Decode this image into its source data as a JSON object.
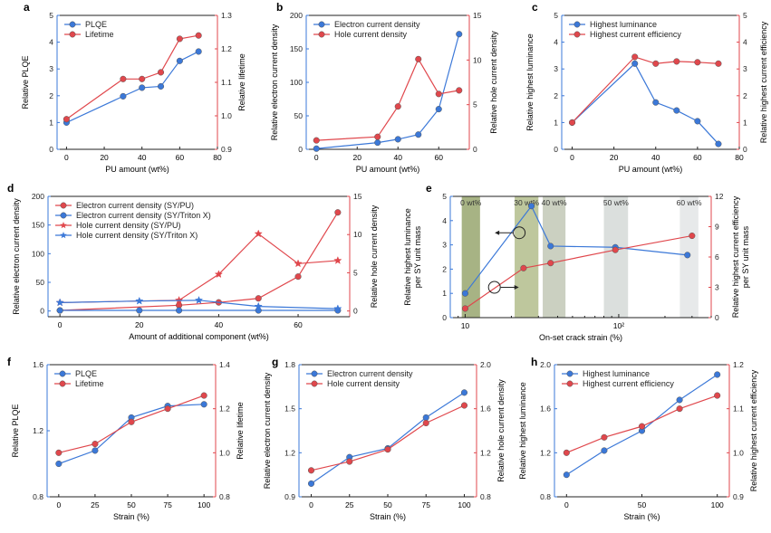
{
  "figure_title": "",
  "colors": {
    "blue": "#3b78d8",
    "red": "#e0474c",
    "axis_red": "#e0474c",
    "axis_blue": "#3b78d8",
    "black": "#222222"
  },
  "chart_data": [
    {
      "panel": "a",
      "type": "line",
      "xlabel": "PU amount (wt%)",
      "xlim": [
        -5,
        80
      ],
      "xticks": [
        0,
        20,
        40,
        60,
        80
      ],
      "ylabel": "Relative PLQE",
      "ylim": [
        0,
        5
      ],
      "yticks": [
        0,
        1,
        2,
        3,
        4,
        5
      ],
      "y2label": "Relative lifetime",
      "y2lim": [
        0.9,
        1.3
      ],
      "y2ticks": [
        "0.9",
        "1.0",
        "1.1",
        "1.2",
        "1.3"
      ],
      "legend_position": "top-left",
      "series": [
        {
          "name": "PLQE",
          "color": "blue",
          "marker": "circle",
          "axis": "left",
          "x": [
            0,
            30,
            40,
            50,
            60,
            70
          ],
          "y": [
            1.0,
            1.98,
            2.3,
            2.35,
            3.3,
            3.65
          ]
        },
        {
          "name": "Lifetime",
          "color": "red",
          "marker": "circle",
          "axis": "right",
          "x": [
            0,
            30,
            40,
            50,
            60,
            70
          ],
          "y": [
            0.99,
            1.11,
            1.11,
            1.13,
            1.23,
            1.24
          ]
        }
      ]
    },
    {
      "panel": "b",
      "type": "line",
      "xlabel": "PU amount (wt%)",
      "xlim": [
        -5,
        75
      ],
      "xticks": [
        0,
        20,
        40,
        60
      ],
      "ylabel": "Relative electron current density",
      "ylim": [
        0,
        200
      ],
      "yticks": [
        0,
        50,
        100,
        150,
        200
      ],
      "y2label": "Relative hole current density",
      "y2lim": [
        0,
        15
      ],
      "y2ticks": [
        "0",
        "5",
        "10",
        "15"
      ],
      "legend_position": "top-left",
      "series": [
        {
          "name": "Electron current density",
          "color": "blue",
          "marker": "circle",
          "axis": "left",
          "x": [
            0,
            30,
            40,
            50,
            60,
            70
          ],
          "y": [
            1,
            10,
            15,
            22,
            60,
            172
          ]
        },
        {
          "name": "Hole current density",
          "color": "red",
          "marker": "circle",
          "axis": "right",
          "x": [
            0,
            30,
            40,
            50,
            60,
            70
          ],
          "y": [
            1.0,
            1.4,
            4.8,
            10.1,
            6.2,
            6.6
          ]
        }
      ]
    },
    {
      "panel": "c",
      "type": "line",
      "xlabel": "PU amount (wt%)",
      "xlim": [
        -5,
        80
      ],
      "xticks": [
        0,
        20,
        40,
        60,
        80
      ],
      "ylabel": "Relative highest luminance",
      "ylim": [
        0,
        5
      ],
      "yticks": [
        0,
        1,
        2,
        3,
        4,
        5
      ],
      "y2label": "Relative highest current efficiency",
      "y2lim": [
        0,
        5
      ],
      "y2ticks": [
        "0",
        "1",
        "2",
        "3",
        "4",
        "5"
      ],
      "legend_position": "top-left",
      "series": [
        {
          "name": "Highest luminance",
          "color": "blue",
          "marker": "circle",
          "axis": "left",
          "x": [
            0,
            30,
            40,
            50,
            60,
            70
          ],
          "y": [
            1.0,
            3.2,
            1.75,
            1.45,
            1.05,
            0.2
          ]
        },
        {
          "name": "Highest current efficiency",
          "color": "red",
          "marker": "circle",
          "axis": "right",
          "x": [
            0,
            30,
            40,
            50,
            60,
            70
          ],
          "y": [
            1.0,
            3.45,
            3.2,
            3.28,
            3.25,
            3.2
          ]
        }
      ]
    },
    {
      "panel": "d",
      "type": "line",
      "xlabel": "Amount of additional component (wt%)",
      "xlim": [
        -3,
        73
      ],
      "xticks": [
        0,
        20,
        40,
        60
      ],
      "ylabel": "Relative electron current density",
      "ylim": [
        -10,
        200
      ],
      "yticks": [
        0,
        50,
        100,
        150,
        200
      ],
      "y2label": "Relative hole current density",
      "y2lim": [
        -0.75,
        15
      ],
      "y2ticks": [
        "0",
        "5",
        "10",
        "15"
      ],
      "legend_position": "top-left",
      "series": [
        {
          "name": "Electron current density (SY/PU)",
          "color": "red",
          "marker": "circle",
          "axis": "left",
          "x": [
            0,
            30,
            40,
            50,
            60,
            70
          ],
          "y": [
            1,
            10,
            15,
            22,
            60,
            172
          ]
        },
        {
          "name": "Electron current density (SY/Triton X)",
          "color": "blue",
          "marker": "circle",
          "axis": "left",
          "x": [
            0,
            20,
            30,
            50,
            70
          ],
          "y": [
            1,
            1,
            1,
            1,
            1
          ]
        },
        {
          "name": "Hole current density (SY/PU)",
          "color": "red",
          "marker": "star",
          "axis": "right",
          "x": [
            0,
            30,
            40,
            50,
            60,
            70
          ],
          "y": [
            1.1,
            1.4,
            4.8,
            10.1,
            6.2,
            6.6
          ]
        },
        {
          "name": "Hole current density (SY/Triton X)",
          "color": "blue",
          "marker": "star",
          "axis": "right",
          "x": [
            0,
            20,
            35,
            50,
            70
          ],
          "y": [
            1.1,
            1.3,
            1.4,
            0.6,
            0.3
          ]
        }
      ]
    },
    {
      "panel": "e",
      "type": "line",
      "xlabel": "On-set crack strain (%)",
      "xscale": "log",
      "xlim": [
        8,
        400
      ],
      "xtick_labels": [
        "10",
        "10²"
      ],
      "ylabel": "Relative highest luminance per SY unit mass",
      "ylim": [
        0,
        5
      ],
      "yticks": [
        0,
        1,
        2,
        3,
        4,
        5
      ],
      "y2label": "Relative highest current efficiency per SY unit mass",
      "y2lim": [
        0,
        12
      ],
      "y2ticks": [
        "0",
        "3",
        "6",
        "9",
        "12"
      ],
      "bands": [
        {
          "label": "0 wt%",
          "from": 9.5,
          "to": 12.5,
          "color": "#8a9a5b"
        },
        {
          "label": "30 wt%",
          "from": 21,
          "to": 30,
          "color": "#a8b47c"
        },
        {
          "label": "40 wt%",
          "from": 32,
          "to": 45,
          "color": "#b9c0ac"
        },
        {
          "label": "50 wt%",
          "from": 80,
          "to": 115,
          "color": "#cfd4d1"
        },
        {
          "label": "60 wt%",
          "from": 250,
          "to": 330,
          "color": "#dfe2e3"
        }
      ],
      "series": [
        {
          "name": "Highest luminance",
          "color": "blue",
          "marker": "circle",
          "axis": "left",
          "x": [
            10,
            27,
            36,
            95,
            280
          ],
          "y": [
            1.0,
            4.6,
            2.95,
            2.9,
            2.58
          ]
        },
        {
          "name": "Highest current efficiency",
          "color": "red",
          "marker": "circle",
          "axis": "right",
          "x": [
            10,
            24,
            36,
            95,
            300
          ],
          "y": [
            0.9,
            4.9,
            5.4,
            6.7,
            8.1
          ]
        }
      ]
    },
    {
      "panel": "f",
      "type": "line",
      "xlabel": "Strain (%)",
      "xlim": [
        -8,
        108
      ],
      "xticks": [
        0,
        25,
        50,
        75,
        100
      ],
      "ylabel": "Relative PLQE",
      "ylim": [
        0.8,
        1.6
      ],
      "yticks": [
        "0.8",
        "1.2",
        "1.6"
      ],
      "y2label": "Relative lifetime",
      "y2lim": [
        0.8,
        1.4
      ],
      "y2ticks": [
        "0.8",
        "1.0",
        "1.2",
        "1.4"
      ],
      "legend_position": "top-left",
      "series": [
        {
          "name": "PLQE",
          "color": "blue",
          "marker": "circle",
          "axis": "left",
          "x": [
            0,
            25,
            50,
            75,
            100
          ],
          "y": [
            1.0,
            1.08,
            1.28,
            1.35,
            1.36
          ]
        },
        {
          "name": "Lifetime",
          "color": "red",
          "marker": "circle",
          "axis": "right",
          "x": [
            0,
            25,
            50,
            75,
            100
          ],
          "y": [
            1.0,
            1.04,
            1.14,
            1.2,
            1.26
          ]
        }
      ]
    },
    {
      "panel": "g",
      "type": "line",
      "xlabel": "Strain (%)",
      "xlim": [
        -8,
        108
      ],
      "xticks": [
        0,
        25,
        50,
        75,
        100
      ],
      "ylabel": "Relative electron current density",
      "ylim": [
        0.9,
        1.8
      ],
      "yticks": [
        "0.9",
        "1.2",
        "1.5",
        "1.8"
      ],
      "y2label": "Relative hole current density",
      "y2lim": [
        0.8,
        2.0
      ],
      "y2ticks": [
        "0.8",
        "1.2",
        "1.6",
        "2.0"
      ],
      "legend_position": "top-left",
      "series": [
        {
          "name": "Electron current density",
          "color": "blue",
          "marker": "circle",
          "axis": "left",
          "x": [
            0,
            25,
            50,
            75,
            100
          ],
          "y": [
            0.99,
            1.17,
            1.23,
            1.44,
            1.61
          ]
        },
        {
          "name": "Hole current density",
          "color": "red",
          "marker": "circle",
          "axis": "right",
          "x": [
            0,
            25,
            50,
            75,
            100
          ],
          "y": [
            1.04,
            1.12,
            1.23,
            1.47,
            1.63
          ]
        }
      ]
    },
    {
      "panel": "h",
      "type": "line",
      "xlabel": "Strain (%)",
      "xlim": [
        -8,
        108
      ],
      "xticks": [
        0,
        50,
        100
      ],
      "ylabel": "Relative highest luminance",
      "ylim": [
        0.8,
        2.0
      ],
      "yticks": [
        "0.8",
        "1.2",
        "1.6",
        "2.0"
      ],
      "y2label": "Relative highest current efficiency",
      "y2lim": [
        0.9,
        1.2
      ],
      "y2ticks": [
        "0.9",
        "1.0",
        "1.1",
        "1.2"
      ],
      "legend_position": "top-left",
      "series": [
        {
          "name": "Highest luminance",
          "color": "blue",
          "marker": "circle",
          "axis": "left",
          "x": [
            0,
            25,
            50,
            75,
            100
          ],
          "y": [
            1.0,
            1.22,
            1.4,
            1.68,
            1.91
          ]
        },
        {
          "name": "Highest current efficiency",
          "color": "red",
          "marker": "circle",
          "axis": "right",
          "x": [
            0,
            25,
            50,
            75,
            100
          ],
          "y": [
            1.0,
            1.035,
            1.06,
            1.1,
            1.13
          ]
        }
      ]
    }
  ]
}
